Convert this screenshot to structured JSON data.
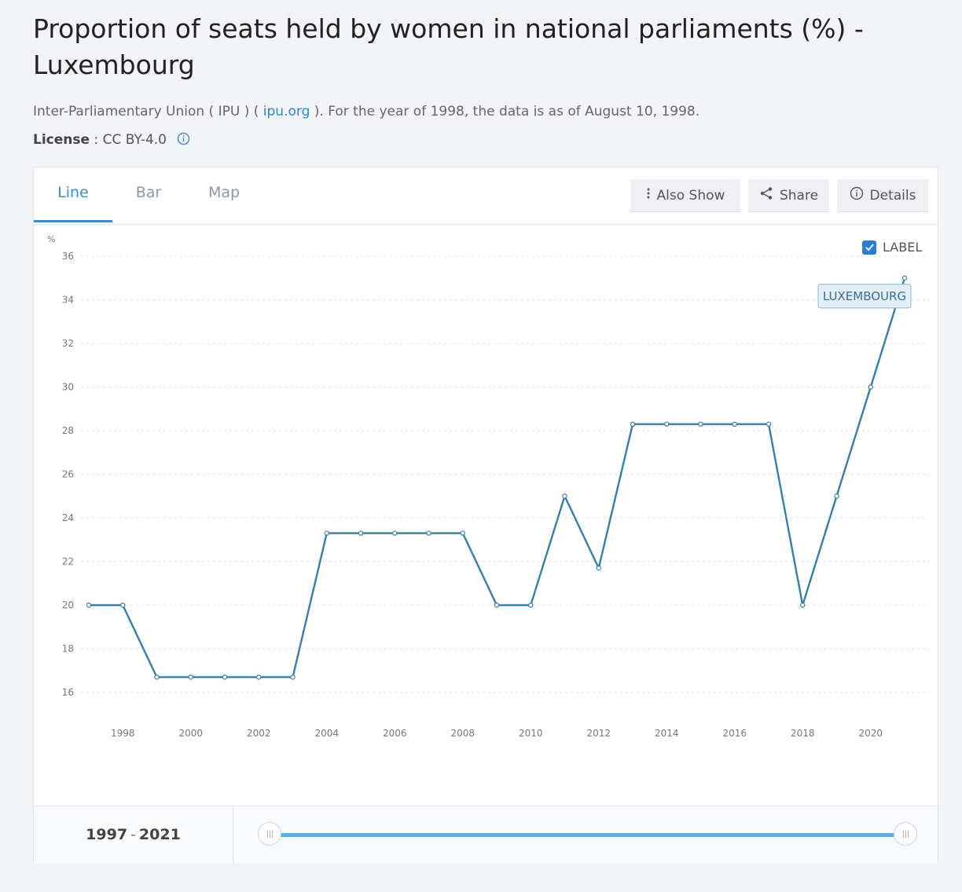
{
  "title": "Proportion of seats held by women in national parliaments (%) - Luxembourg",
  "source": {
    "prefix": "Inter-Parliamentary Union ( IPU ) ( ",
    "link": "ipu.org",
    "suffix": " ). For the year of 1998, the data is as of August 10, 1998."
  },
  "license": {
    "label": "License",
    "sep": " : ",
    "value": "CC BY-4.0"
  },
  "tabs": [
    {
      "label": "Line",
      "active": true
    },
    {
      "label": "Bar",
      "active": false
    },
    {
      "label": "Map",
      "active": false
    }
  ],
  "toolbar": {
    "also_show": "Also Show",
    "share": "Share",
    "details": "Details"
  },
  "label_toggle": {
    "text": "LABEL",
    "checked": true
  },
  "range": {
    "start": "1997",
    "sep": "-",
    "end": "2021"
  },
  "colors": {
    "line": "#3a7ea6",
    "accent": "#3a8fd0",
    "grid": "#d8dde2"
  },
  "chart_data": {
    "type": "line",
    "ylabel": "%",
    "ylim": [
      15,
      36
    ],
    "yticks": [
      16,
      18,
      20,
      22,
      24,
      26,
      28,
      30,
      32,
      34,
      36
    ],
    "xlim": [
      1997,
      2021
    ],
    "xticks": [
      1998,
      2000,
      2002,
      2004,
      2006,
      2008,
      2010,
      2012,
      2014,
      2016,
      2018,
      2020
    ],
    "grid": true,
    "series": [
      {
        "name": "LUXEMBOURG",
        "x": [
          1997,
          1998,
          1999,
          2000,
          2001,
          2002,
          2003,
          2004,
          2005,
          2006,
          2007,
          2008,
          2009,
          2010,
          2011,
          2012,
          2013,
          2014,
          2015,
          2016,
          2017,
          2018,
          2019,
          2020,
          2021
        ],
        "values": [
          20.0,
          20.0,
          16.7,
          16.7,
          16.7,
          16.7,
          16.7,
          23.3,
          23.3,
          23.3,
          23.3,
          23.3,
          20.0,
          20.0,
          25.0,
          21.7,
          28.3,
          28.3,
          28.3,
          28.3,
          28.3,
          20.0,
          25.0,
          30.0,
          35.0
        ]
      }
    ]
  }
}
